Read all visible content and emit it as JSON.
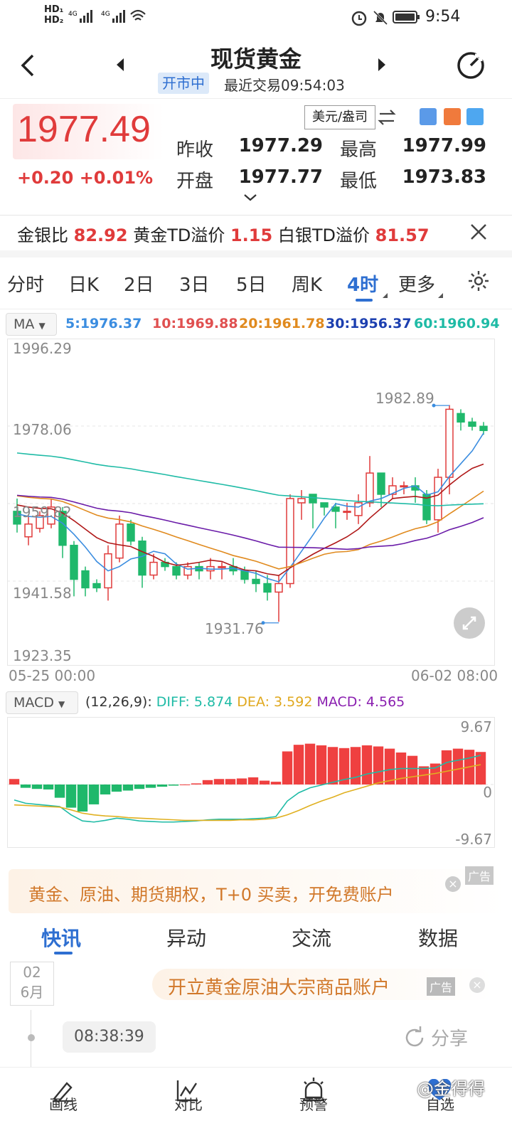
{
  "status_bar": {
    "left": "HD 4G 4G",
    "time": "9:54"
  },
  "header": {
    "title": "现货黄金",
    "status_badge": "开市中",
    "last_trade": "最近交易09:54:03"
  },
  "quote": {
    "price": "1977.49",
    "change": "+0.20",
    "change_pct": "+0.01%",
    "unit": "美元/盎司",
    "prev_close_label": "昨收",
    "prev_close": "1977.29",
    "high_label": "最高",
    "high": "1977.99",
    "open_label": "开盘",
    "open": "1977.77",
    "low_label": "最低",
    "low": "1973.83"
  },
  "ratios": {
    "gs_label": "金银比",
    "gs": "82.92",
    "gold_td_label": "黄金TD溢价",
    "gold_td": "1.15",
    "silver_td_label": "白银TD溢价",
    "silver_td": "81.57"
  },
  "period_tabs": [
    "分时",
    "日K",
    "2日",
    "3日",
    "5日",
    "周K",
    "4时",
    "更多"
  ],
  "active_tab": "4时",
  "ma": {
    "label": "MA",
    "ma5": "5:1976.37",
    "ma10": "10:1969.88",
    "ma20": "20:1961.78",
    "ma30": "30:1956.37",
    "ma60": "60:1960.94"
  },
  "colors": {
    "up": "#e03b3b",
    "down": "#1fb86b",
    "ma5": "#3b8de0",
    "ma10": "#b01818",
    "ma20": "#e08a1e",
    "ma30": "#6a1ba8",
    "ma60": "#1fbba6",
    "accent": "#2e6fd1"
  },
  "chart_data": [
    {
      "type": "candlestick",
      "y_ticks": [
        "1996.29",
        "1978.06",
        "1959.82",
        "1941.58",
        "1923.35"
      ],
      "ylim": [
        1923.35,
        1996.29
      ],
      "x_start": "05-25 00:00",
      "x_end": "06-02 08:00",
      "annot_high": "1982.89",
      "annot_low": "1931.76",
      "candles": [
        [
          1958,
          1955,
          1961,
          1953
        ],
        [
          1952,
          1955,
          1957,
          1950
        ],
        [
          1954,
          1957,
          1958,
          1953
        ],
        [
          1955,
          1959,
          1961,
          1954
        ],
        [
          1958,
          1950,
          1959,
          1947
        ],
        [
          1950,
          1942,
          1951,
          1938
        ],
        [
          1944,
          1940,
          1945,
          1938
        ],
        [
          1941,
          1940,
          1942,
          1939
        ],
        [
          1940,
          1948,
          1950,
          1937
        ],
        [
          1947,
          1955,
          1957,
          1946
        ],
        [
          1955,
          1951,
          1956,
          1950
        ],
        [
          1951,
          1943,
          1952,
          1940
        ],
        [
          1943,
          1946,
          1948,
          1942
        ],
        [
          1946,
          1945,
          1947,
          1944
        ],
        [
          1945,
          1943,
          1946,
          1942
        ],
        [
          1943,
          1945,
          1946,
          1942
        ],
        [
          1945,
          1944,
          1946,
          1942
        ],
        [
          1944,
          1945,
          1947,
          1942
        ],
        [
          1945,
          1945,
          1946,
          1942
        ],
        [
          1945,
          1944,
          1947,
          1943
        ],
        [
          1944,
          1942,
          1945,
          1941
        ],
        [
          1942,
          1941,
          1944,
          1939
        ],
        [
          1941,
          1939,
          1943,
          1937
        ],
        [
          1939,
          1941,
          1943,
          1932
        ],
        [
          1941,
          1961,
          1962,
          1940
        ],
        [
          1960,
          1961,
          1963,
          1956
        ],
        [
          1962,
          1960,
          1962,
          1954
        ],
        [
          1960,
          1959,
          1960,
          1957
        ],
        [
          1959,
          1958,
          1960,
          1954
        ],
        [
          1958,
          1958,
          1960,
          1956
        ],
        [
          1957,
          1960,
          1962,
          1955
        ],
        [
          1960,
          1967,
          1971,
          1959
        ],
        [
          1967,
          1962,
          1967,
          1959
        ],
        [
          1962,
          1964,
          1966,
          1961
        ],
        [
          1964,
          1964,
          1965,
          1962
        ],
        [
          1964,
          1963,
          1966,
          1960
        ],
        [
          1962,
          1956,
          1963,
          1955
        ],
        [
          1956,
          1966,
          1968,
          1953
        ],
        [
          1966,
          1982,
          1983,
          1962
        ],
        [
          1981,
          1979,
          1982,
          1977
        ],
        [
          1979,
          1978,
          1980,
          1977
        ],
        [
          1978,
          1977,
          1979,
          1976
        ]
      ]
    },
    {
      "type": "bar",
      "label": "MACD",
      "params": "(12,26,9):",
      "diff": "DIFF: 5.874",
      "dea": "DEA: 3.592",
      "macd": "MACD: 4.565",
      "y_ticks": [
        "9.67",
        "0",
        "-9.67"
      ],
      "ylim": [
        -9.67,
        9.67
      ],
      "values": [
        1.0,
        -0.6,
        -0.8,
        -0.9,
        -2.4,
        -4.2,
        -4.9,
        -3.6,
        -1.8,
        -1.3,
        -1.1,
        -0.8,
        -0.6,
        -0.4,
        -0.2,
        0.0,
        0.2,
        0.8,
        1.0,
        1.0,
        1.1,
        1.3,
        0.7,
        0.5,
        6.0,
        7.2,
        7.4,
        7.1,
        6.8,
        6.6,
        6.8,
        7.1,
        6.9,
        6.5,
        5.8,
        5.2,
        3.3,
        3.8,
        6.2,
        6.5,
        6.3,
        5.9
      ],
      "diff_vals": [
        -2.8,
        -3.4,
        -3.6,
        -3.8,
        -4.0,
        -5.5,
        -6.6,
        -6.8,
        -6.5,
        -6.1,
        -6.3,
        -6.6,
        -6.7,
        -6.8,
        -6.8,
        -6.7,
        -6.6,
        -6.4,
        -6.3,
        -6.3,
        -6.3,
        -6.2,
        -6.1,
        -5.8,
        -3.0,
        -1.5,
        -0.6,
        -0.1,
        0.4,
        0.9,
        1.3,
        1.9,
        2.3,
        2.7,
        2.9,
        2.9,
        2.9,
        3.0,
        4.0,
        4.4,
        4.8,
        5.3
      ],
      "dea_vals": [
        -3.7,
        -3.8,
        -3.9,
        -4.0,
        -4.1,
        -4.6,
        -5.2,
        -5.5,
        -5.7,
        -5.8,
        -6.0,
        -6.1,
        -6.2,
        -6.3,
        -6.4,
        -6.5,
        -6.5,
        -6.5,
        -6.5,
        -6.5,
        -6.4,
        -6.4,
        -6.3,
        -6.1,
        -5.5,
        -4.7,
        -3.8,
        -3.0,
        -2.3,
        -1.5,
        -0.9,
        -0.3,
        0.3,
        0.7,
        1.1,
        1.4,
        1.7,
        2.0,
        2.4,
        2.8,
        3.2,
        3.6
      ]
    }
  ],
  "ad1": {
    "text": "黄金、原油、期货期权，T+0 买卖，开免费账户",
    "tag": "广告"
  },
  "news_tabs": [
    "快讯",
    "异动",
    "交流",
    "数据"
  ],
  "news": {
    "date_top": "02",
    "date_bottom": "6月",
    "ad_text": "开立黄金原油大宗商品账户",
    "ad_tag": "广告",
    "time": "08:38:39",
    "share": "分享"
  },
  "footer": [
    "画线",
    "对比",
    "预警",
    "自选"
  ],
  "watermark": "@金得得"
}
